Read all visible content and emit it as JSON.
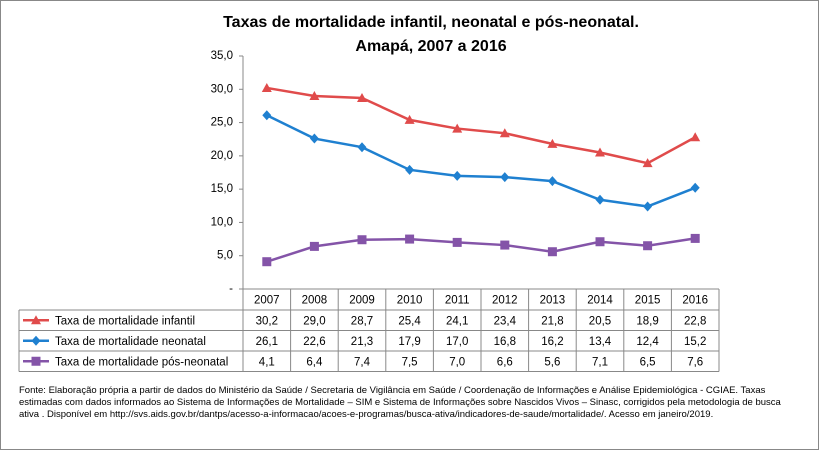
{
  "chart_data": {
    "type": "line",
    "title": "Taxas de mortalidade infantil, neonatal e pós-neonatal.",
    "subtitle": "Amapá, 2007 a 2016",
    "categories": [
      "2007",
      "2008",
      "2009",
      "2010",
      "2011",
      "2012",
      "2013",
      "2014",
      "2015",
      "2016"
    ],
    "series": [
      {
        "name": "Taxa de mortalidade infantil",
        "color": "#e04b4b",
        "marker": "triangle",
        "values": [
          30.2,
          29.0,
          28.7,
          25.4,
          24.1,
          23.4,
          21.8,
          20.5,
          18.9,
          22.8
        ],
        "value_labels": [
          "30,2",
          "29,0",
          "28,7",
          "25,4",
          "24,1",
          "23,4",
          "21,8",
          "20,5",
          "18,9",
          "22,8"
        ]
      },
      {
        "name": "Taxa de mortalidade neonatal",
        "color": "#1f80d0",
        "marker": "diamond",
        "values": [
          26.1,
          22.6,
          21.3,
          17.9,
          17.0,
          16.8,
          16.2,
          13.4,
          12.4,
          15.2
        ],
        "value_labels": [
          "26,1",
          "22,6",
          "21,3",
          "17,9",
          "17,0",
          "16,8",
          "16,2",
          "13,4",
          "12,4",
          "15,2"
        ]
      },
      {
        "name": "Taxa de mortalidade pós-neonatal",
        "color": "#8454a8",
        "marker": "square",
        "values": [
          4.1,
          6.4,
          7.4,
          7.5,
          7.0,
          6.6,
          5.6,
          7.1,
          6.5,
          7.6
        ],
        "value_labels": [
          "4,1",
          "6,4",
          "7,4",
          "7,5",
          "7,0",
          "6,6",
          "5,6",
          "7,1",
          "6,5",
          "7,6"
        ]
      }
    ],
    "ylim": [
      0,
      35
    ],
    "yticks": [
      {
        "value": 0,
        "label": "-"
      },
      {
        "value": 5,
        "label": "5,0"
      },
      {
        "value": 10,
        "label": "10,0"
      },
      {
        "value": 15,
        "label": "15,0"
      },
      {
        "value": 20,
        "label": "20,0"
      },
      {
        "value": 25,
        "label": "25,0"
      },
      {
        "value": 30,
        "label": "30,0"
      },
      {
        "value": 35,
        "label": "35,0"
      }
    ],
    "grid": false,
    "source": "Fonte: Elaboração própria a partir de dados do Ministério da Saúde / Secretaria de Vigilância em Saúde / Coordenação de Informações e Análise Epidemiológica - CGIAE.  Taxas estimadas com dados informados ao Sistema de Informações de Mortalidade – SIM e Sistema de Informações sobre Nascidos Vivos – Sinasc, corrigidos pela metodologia de busca ativa . Disponível em http://svs.aids.gov.br/dantps/acesso-a-informacao/acoes-e-programas/busca-ativa/indicadores-de-saude/mortalidade/. Acesso em janeiro/2019."
  }
}
